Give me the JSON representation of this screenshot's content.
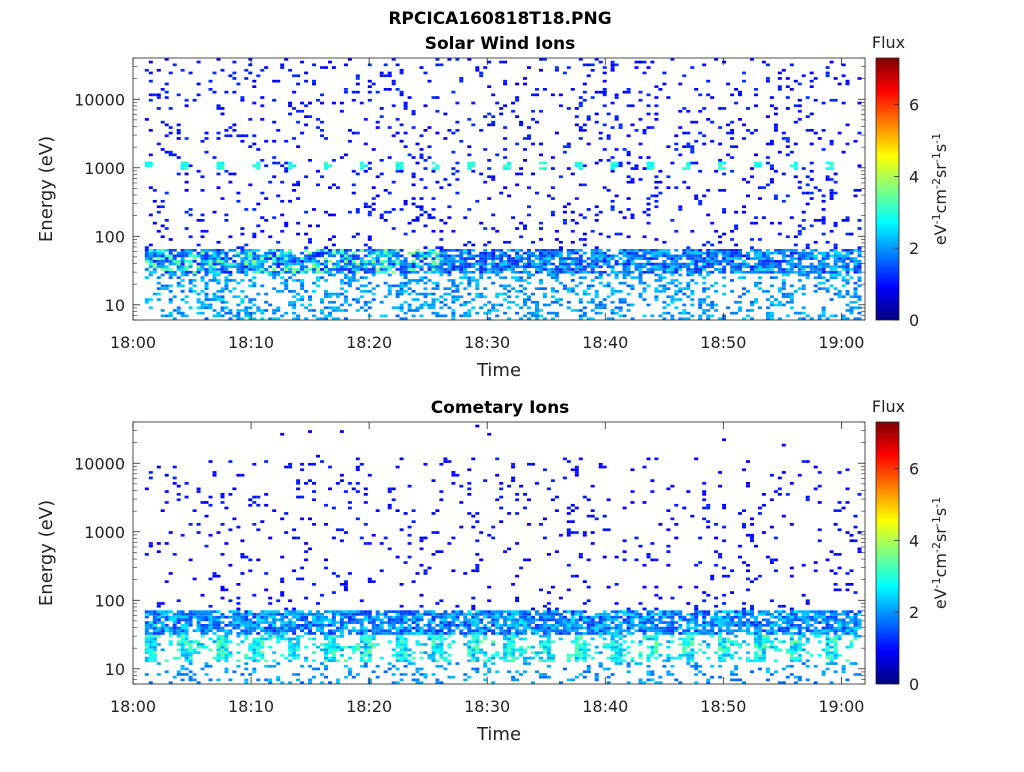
{
  "figure": {
    "title": "RPCICA160818T18.PNG"
  },
  "chart_data": [
    {
      "type": "heatmap",
      "title": "Solar Wind Ions",
      "xlabel": "Time",
      "ylabel": "Energy (eV)",
      "x_axis": {
        "type": "time",
        "range": [
          "18:00",
          "19:02"
        ],
        "tick_labels": [
          "18:00",
          "18:10",
          "18:20",
          "18:30",
          "18:40",
          "18:50",
          "19:00"
        ]
      },
      "y_axis": {
        "scale": "log",
        "range": [
          6,
          40000
        ],
        "ticks": [
          10,
          100,
          1000,
          10000
        ],
        "tick_labels": [
          "10",
          "100",
          "1000",
          "10000"
        ]
      },
      "colorbar": {
        "title": "Flux",
        "label": "eV-1cm-2sr-1s-1",
        "range": [
          0,
          7.3
        ],
        "ticks": [
          0,
          2,
          4,
          6
        ],
        "tick_labels": [
          "0",
          "2",
          "4",
          "6"
        ]
      },
      "data_start": "18:01"
    },
    {
      "type": "heatmap",
      "title": "Cometary Ions",
      "xlabel": "Time",
      "ylabel": "Energy (eV)",
      "x_axis": {
        "type": "time",
        "range": [
          "18:00",
          "19:02"
        ],
        "tick_labels": [
          "18:00",
          "18:10",
          "18:20",
          "18:30",
          "18:40",
          "18:50",
          "19:00"
        ]
      },
      "y_axis": {
        "scale": "log",
        "range": [
          6,
          40000
        ],
        "ticks": [
          10,
          100,
          1000,
          10000
        ],
        "tick_labels": [
          "10",
          "100",
          "1000",
          "10000"
        ]
      },
      "colorbar": {
        "title": "Flux",
        "label": "eV-1cm-2sr-1s-1",
        "range": [
          0,
          7.3
        ],
        "ticks": [
          0,
          2,
          4,
          6
        ],
        "tick_labels": [
          "0",
          "2",
          "4",
          "6"
        ]
      },
      "data_start": "18:01"
    }
  ],
  "colors": {
    "jet": [
      "#00007f",
      "#0000ff",
      "#007fff",
      "#00ffff",
      "#7fff7f",
      "#ffff00",
      "#ff7f00",
      "#ff0000",
      "#7f0000"
    ]
  }
}
